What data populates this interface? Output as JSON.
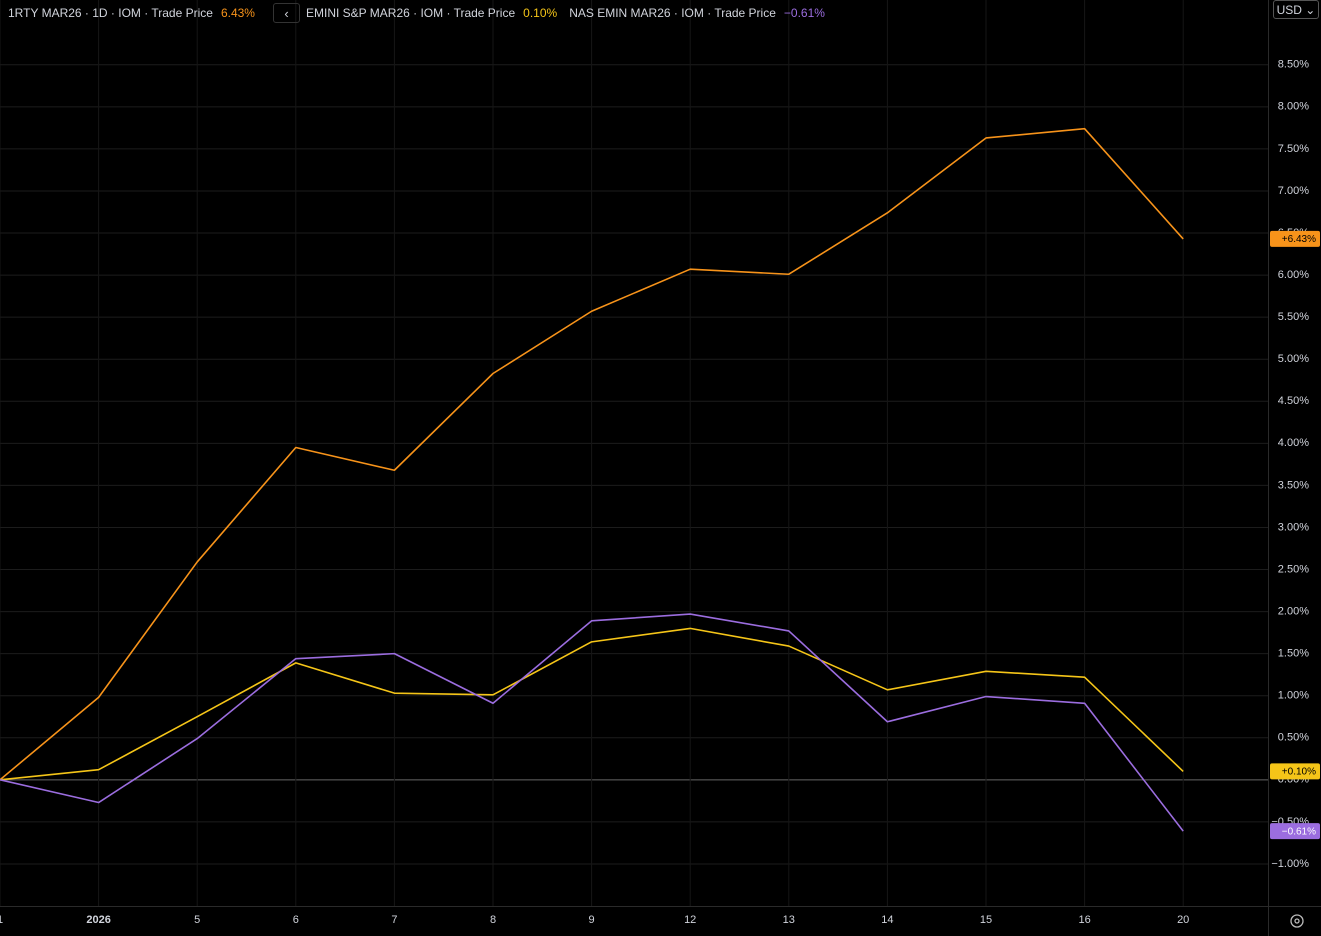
{
  "chart_data": {
    "type": "line",
    "currency": "USD",
    "categories": [
      "1",
      "2026",
      "5",
      "6",
      "7",
      "8",
      "9",
      "12",
      "13",
      "14",
      "15",
      "16",
      "20"
    ],
    "series": [
      {
        "name": "1RTY MAR26 · 1D · IOM · Trade Price",
        "color": "#f7931a",
        "last_label": "6.43%",
        "tag_label": "+6.43%",
        "values": [
          0,
          0.98,
          2.59,
          3.95,
          3.68,
          4.83,
          5.57,
          6.07,
          6.01,
          6.74,
          7.63,
          7.74,
          6.43
        ]
      },
      {
        "name": "EMINI S&P MAR26 · IOM · Trade Price",
        "color": "#f5c518",
        "last_label": "0.10%",
        "tag_label": "+0.10%",
        "values": [
          0,
          0.12,
          0.75,
          1.39,
          1.03,
          1.01,
          1.64,
          1.8,
          1.59,
          1.07,
          1.29,
          1.22,
          0.1
        ]
      },
      {
        "name": "NAS EMIN MAR26 · IOM · Trade Price",
        "color": "#9b6ddf",
        "last_label": "−0.61%",
        "tag_label": "−0.61%",
        "values": [
          0,
          -0.27,
          0.49,
          1.44,
          1.5,
          0.91,
          1.89,
          1.97,
          1.77,
          0.69,
          0.99,
          0.91,
          -0.61
        ]
      }
    ],
    "ylim": [
      -1.5,
      9.27
    ],
    "yticks": [
      {
        "value": -1,
        "label": "−1.00%"
      },
      {
        "value": -0.5,
        "label": "−0.50%"
      },
      {
        "value": 0,
        "label": "0.00%"
      },
      {
        "value": 0.5,
        "label": "0.50%"
      },
      {
        "value": 1,
        "label": "1.00%"
      },
      {
        "value": 1.5,
        "label": "1.50%"
      },
      {
        "value": 2,
        "label": "2.00%"
      },
      {
        "value": 2.5,
        "label": "2.50%"
      },
      {
        "value": 3,
        "label": "3.00%"
      },
      {
        "value": 3.5,
        "label": "3.50%"
      },
      {
        "value": 4,
        "label": "4.00%"
      },
      {
        "value": 4.5,
        "label": "4.50%"
      },
      {
        "value": 5,
        "label": "5.00%"
      },
      {
        "value": 5.5,
        "label": "5.50%"
      },
      {
        "value": 6,
        "label": "6.00%"
      },
      {
        "value": 6.5,
        "label": "6.50%"
      },
      {
        "value": 7,
        "label": "7.00%"
      },
      {
        "value": 7.5,
        "label": "7.50%"
      },
      {
        "value": 8,
        "label": "8.00%"
      },
      {
        "value": 8.5,
        "label": "8.50%"
      }
    ],
    "grid": true
  }
}
